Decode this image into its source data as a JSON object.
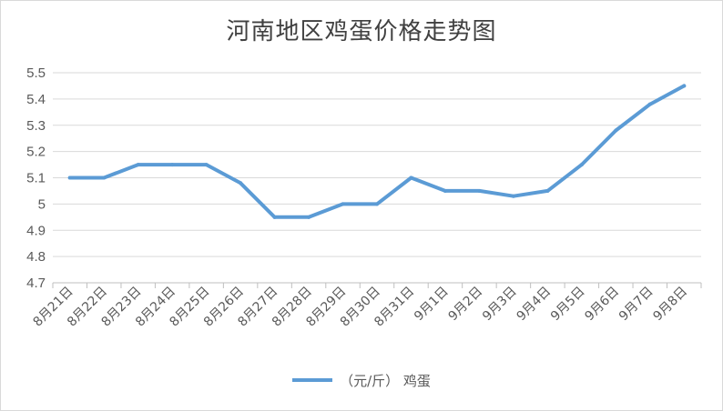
{
  "chart_data": {
    "type": "line",
    "title": "河南地区鸡蛋价格走势图",
    "categories": [
      "8月21日",
      "8月22日",
      "8月23日",
      "8月24日",
      "8月25日",
      "8月26日",
      "8月27日",
      "8月28日",
      "8月29日",
      "8月30日",
      "8月31日",
      "9月1日",
      "9月2日",
      "9月3日",
      "9月4日",
      "9月5日",
      "9月6日",
      "9月7日",
      "9月8日"
    ],
    "series": [
      {
        "name": "（元/斤） 鸡蛋",
        "color": "#5b9bd5",
        "values": [
          5.1,
          5.1,
          5.15,
          5.15,
          5.15,
          5.08,
          4.95,
          4.95,
          5.0,
          5.0,
          5.1,
          5.05,
          5.05,
          5.03,
          5.05,
          5.15,
          5.28,
          5.38,
          5.45
        ]
      }
    ],
    "ylim": [
      4.7,
      5.5
    ],
    "yticks": [
      "4.7",
      "4.8",
      "4.9",
      "5",
      "5.1",
      "5.2",
      "5.3",
      "5.4",
      "5.5"
    ],
    "grid": true,
    "legend": "bottom"
  }
}
